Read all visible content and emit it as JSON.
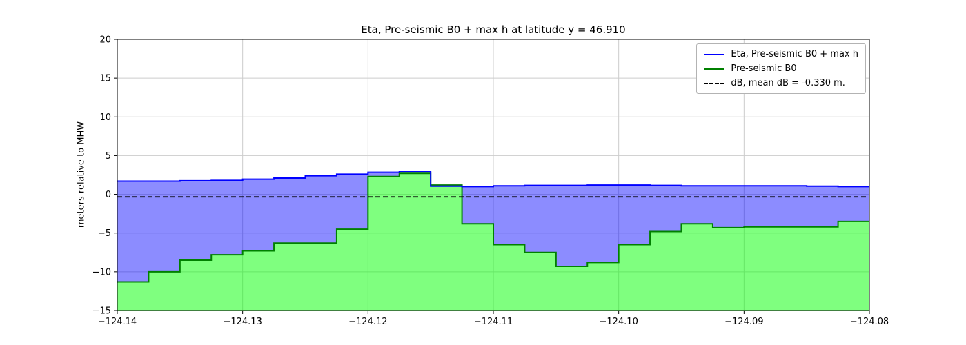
{
  "chart_data": {
    "type": "area",
    "title": "Eta, Pre-seismic B0 + max h at latitude y = 46.910",
    "xlabel": "",
    "ylabel": "meters relative to MHW",
    "xlim": [
      -124.14,
      -124.08
    ],
    "ylim": [
      -15,
      20
    ],
    "grid": true,
    "legend_position": "upper right",
    "x_ticks": [
      -124.14,
      -124.13,
      -124.12,
      -124.11,
      -124.1,
      -124.09,
      -124.08
    ],
    "x_tick_labels": [
      "−124.14",
      "−124.13",
      "−124.12",
      "−124.11",
      "−124.10",
      "−124.09",
      "−124.08"
    ],
    "y_ticks": [
      -15,
      -10,
      -5,
      0,
      5,
      10,
      15,
      20
    ],
    "y_tick_labels": [
      "−15",
      "−10",
      "−5",
      "0",
      "5",
      "10",
      "15",
      "20"
    ],
    "step_boundaries": [
      -124.14,
      -124.1375,
      -124.135,
      -124.1325,
      -124.13,
      -124.1275,
      -124.125,
      -124.1225,
      -124.12,
      -124.1175,
      -124.115,
      -124.1125,
      -124.11,
      -124.1075,
      -124.105,
      -124.1025,
      -124.1,
      -124.0975,
      -124.095,
      -124.0925,
      -124.09,
      -124.0875,
      -124.085,
      -124.0825,
      -124.08
    ],
    "series": [
      {
        "name": "Eta, Pre-seismic B0 + max h",
        "style": "step",
        "line_color": "#0000ff",
        "fill_color": "rgba(0,0,255,0.45)",
        "values": [
          1.7,
          1.7,
          1.75,
          1.8,
          1.95,
          2.1,
          2.4,
          2.6,
          2.85,
          2.9,
          1.05,
          1.0,
          1.1,
          1.15,
          1.15,
          1.2,
          1.2,
          1.15,
          1.1,
          1.1,
          1.1,
          1.1,
          1.05,
          1.0
        ]
      },
      {
        "name": "Pre-seismic B0",
        "style": "step",
        "line_color": "#008000",
        "fill_color": "rgba(0,255,0,0.5)",
        "values": [
          -11.3,
          -10.0,
          -8.5,
          -7.8,
          -7.3,
          -6.3,
          -6.3,
          -4.5,
          2.3,
          2.7,
          1.2,
          -3.8,
          -6.5,
          -7.5,
          -9.3,
          -8.8,
          -6.5,
          -4.8,
          -3.8,
          -4.3,
          -4.2,
          -4.2,
          -4.2,
          -3.5
        ]
      }
    ],
    "reference_line": {
      "label": "dB, mean dB = -0.330 m.",
      "value": -0.33,
      "color": "#000000",
      "style": "dashed"
    },
    "legend": [
      {
        "label": "Eta, Pre-seismic B0 + max h",
        "color": "#0000ff",
        "dash": false
      },
      {
        "label": "Pre-seismic B0",
        "color": "#008000",
        "dash": false
      },
      {
        "label": "dB, mean dB = -0.330 m.",
        "color": "#000000",
        "dash": true
      }
    ],
    "colors": {
      "grid": "#cccccc",
      "spine": "#000000",
      "eta_fill": "rgba(0,0,255,0.45)",
      "b0_fill": "rgba(0,255,0,0.5)"
    }
  }
}
